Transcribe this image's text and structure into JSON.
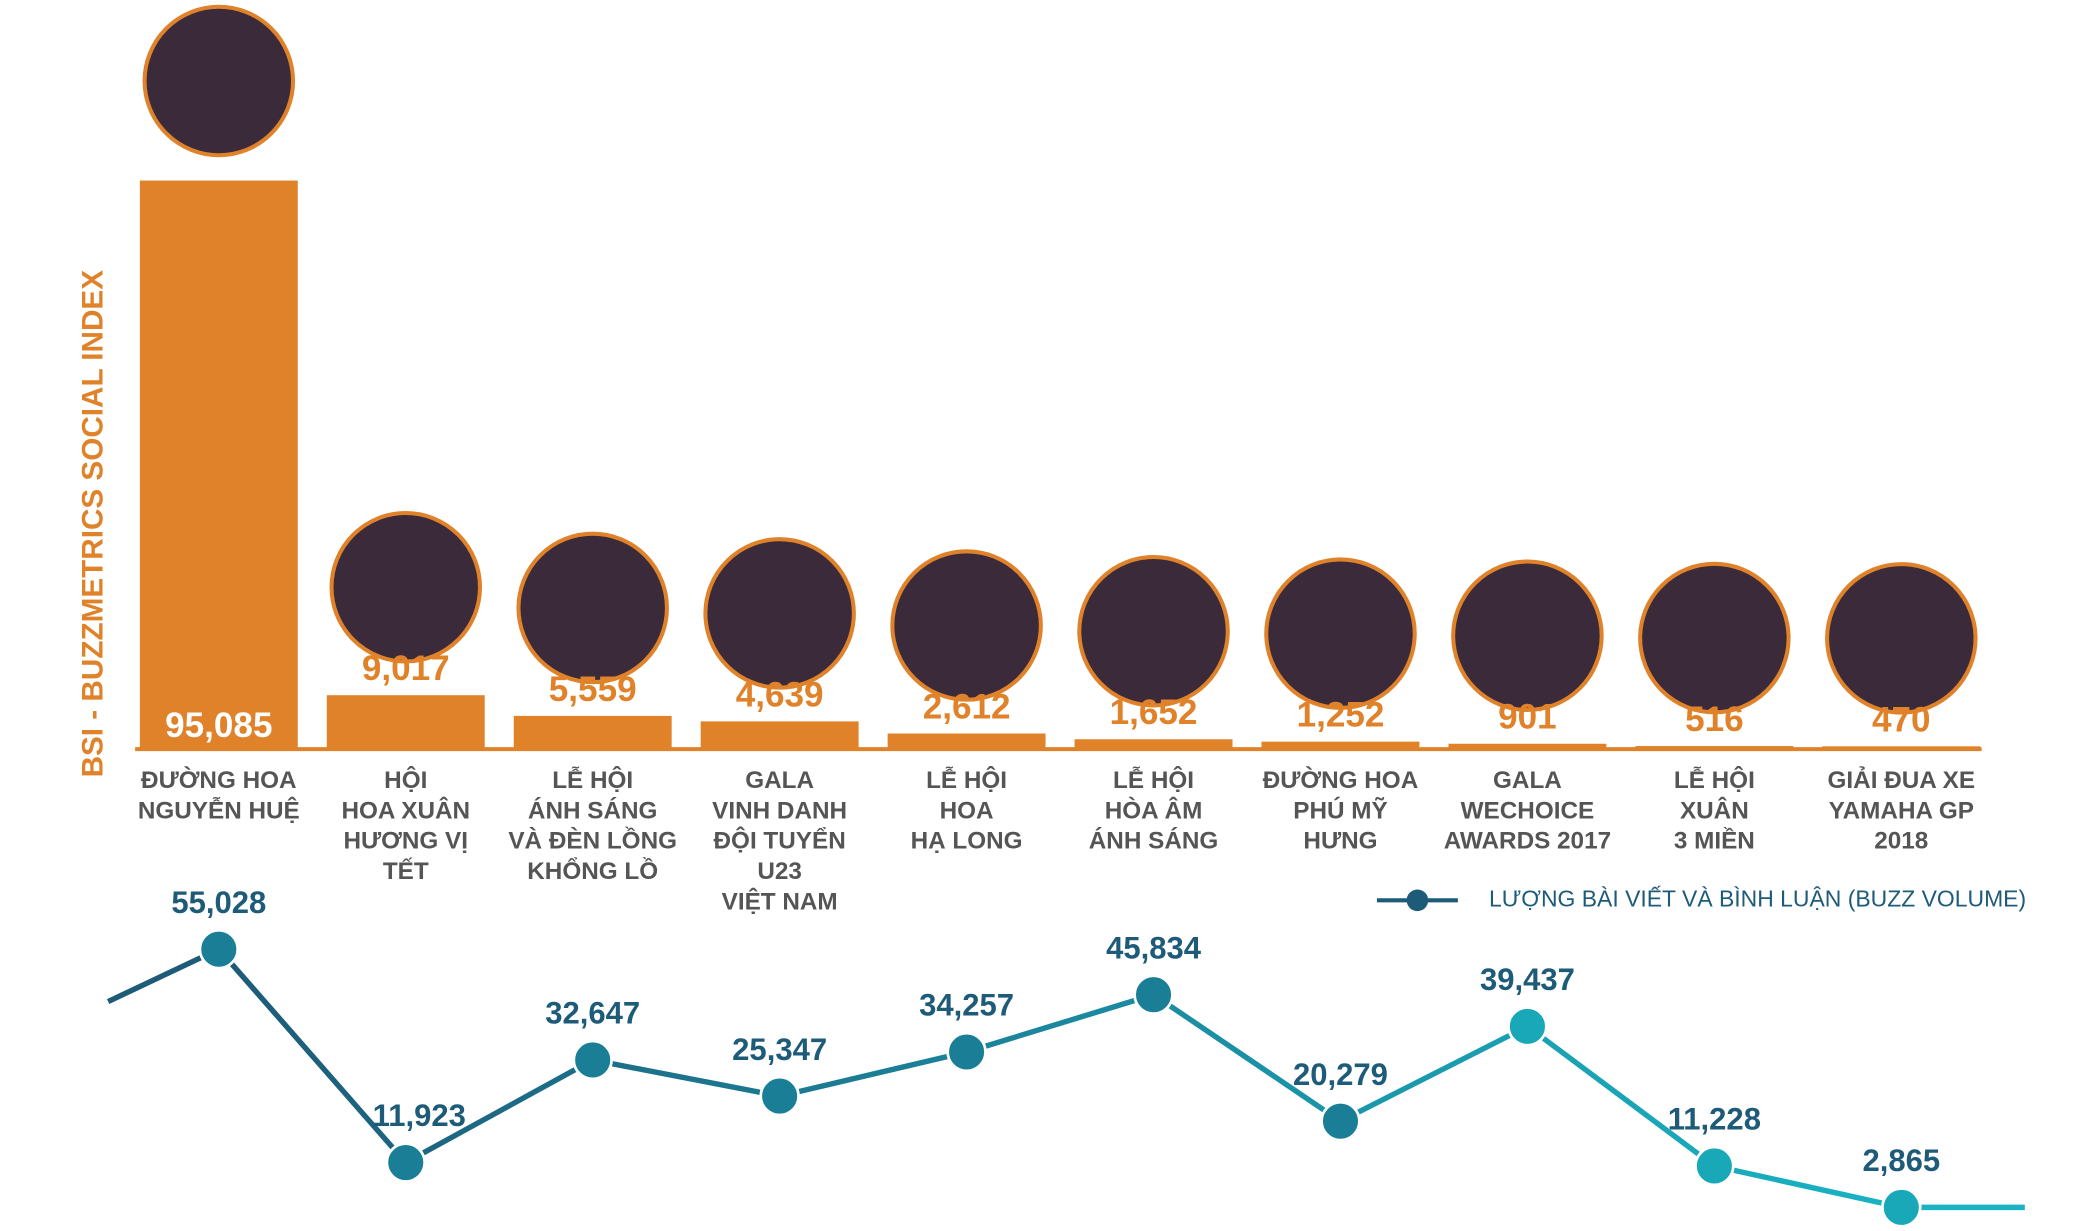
{
  "chart_data": {
    "type": "bar",
    "y_label": "BSI - BUZZMETRICS SOCIAL INDEX",
    "categories": [
      [
        "ĐƯỜNG HOA",
        "NGUYỄN HUỆ"
      ],
      [
        "HỘI",
        "HOA XUÂN",
        "HƯƠNG VỊ",
        "TẾT"
      ],
      [
        "LỄ HỘI",
        "ÁNH SÁNG",
        "VÀ ĐÈN LỒNG",
        "KHỔNG LỒ"
      ],
      [
        "GALA",
        "VINH DANH",
        "ĐỘI TUYỂN",
        "U23",
        "VIỆT NAM"
      ],
      [
        "LỄ HỘI",
        "HOA",
        "HẠ LONG"
      ],
      [
        "LỄ HỘI",
        "HÒA ÂM",
        "ÁNH SÁNG"
      ],
      [
        "ĐƯỜNG HOA",
        "PHÚ MỸ",
        "HƯNG"
      ],
      [
        "GALA",
        "WECHOICE",
        "AWARDS 2017"
      ],
      [
        "LỄ HỘI",
        "XUÂN",
        "3 MIỀN"
      ],
      [
        "GIẢI ĐUA XE",
        "YAMAHA GP",
        "2018"
      ]
    ],
    "values": [
      95085,
      9017,
      5559,
      4639,
      2612,
      1652,
      1252,
      901,
      516,
      470
    ],
    "value_labels": [
      "95,085",
      "9,017",
      "5,559",
      "4,639",
      "2,612",
      "1,652",
      "1,252",
      "901",
      "516",
      "470"
    ],
    "color": "#e0822a",
    "ylim": [
      0,
      100000
    ],
    "line": {
      "type": "line",
      "name": "LƯỢNG BÀI VIẾT VÀ BÌNH LUẬN (BUZZ VOLUME)",
      "color": "#1a7f96",
      "label_color": "#1d5b78",
      "values": [
        55028,
        11923,
        32647,
        25347,
        34257,
        45834,
        20279,
        39437,
        11228,
        2865
      ],
      "value_labels": [
        "55,028",
        "11,923",
        "32,647",
        "25,347",
        "34,257",
        "45,834",
        "20,279",
        "39,437",
        "11,228",
        "2,865"
      ],
      "ylim": [
        0,
        60000
      ]
    }
  }
}
